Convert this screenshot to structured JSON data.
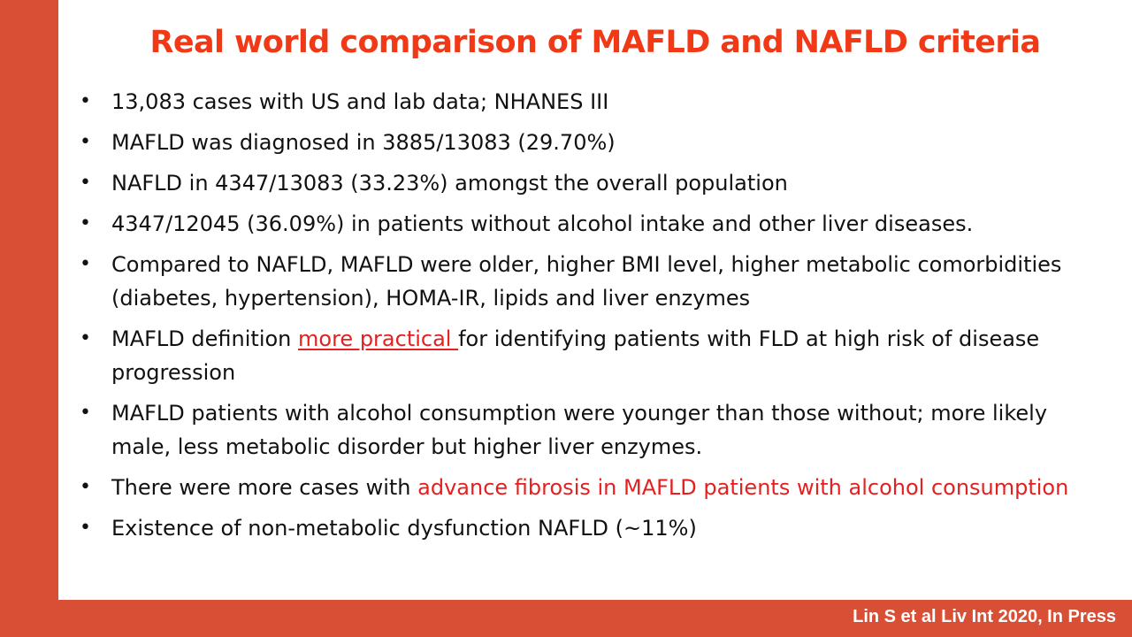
{
  "title": "Real world comparison of MAFLD and NAFLD criteria",
  "citation": "Lin S et al Liv Int 2020, In Press",
  "colors": {
    "accent_bar": "#d94f35",
    "title": "#f03a17",
    "highlight": "#e42020",
    "body_text": "#111111"
  },
  "bullets": [
    {
      "text": "13,083 cases with US and lab data; NHANES III"
    },
    {
      "text": "MAFLD was diagnosed in 3885/13083 (29.70%)"
    },
    {
      "text": "NAFLD in 4347/13083 (33.23%) amongst the overall population"
    },
    {
      "text": "4347/12045 (36.09%) in patients without alcohol intake and other liver diseases."
    },
    {
      "text": "Compared to NAFLD, MAFLD were older, higher BMI level, higher metabolic comorbidities (diabetes, hypertension), HOMA-IR, lipids and liver enzymes"
    },
    {
      "before": "MAFLD definition ",
      "link": "more practical ",
      "after": "for identifying patients with FLD at high risk of disease progression"
    },
    {
      "text": "MAFLD patients with alcohol consumption were younger than those without; more likely male, less metabolic disorder but higher liver enzymes."
    },
    {
      "before": "There were more cases with ",
      "highlight": "advance fibrosis in MAFLD patients with alcohol consumption"
    },
    {
      "text": "Existence of non-metabolic dysfunction NAFLD (~11%)"
    }
  ]
}
